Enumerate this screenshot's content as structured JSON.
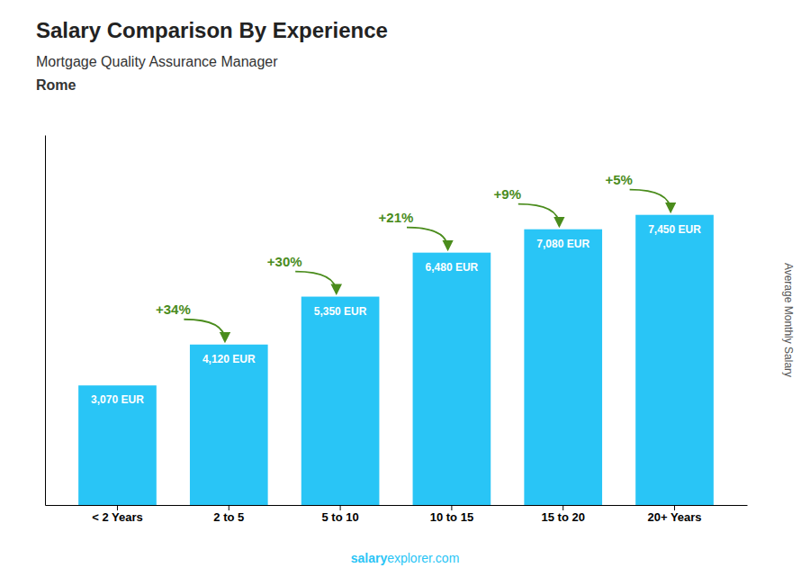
{
  "chart_data": {
    "type": "bar",
    "title": "Salary Comparison By Experience",
    "subtitle": "Mortgage Quality Assurance Manager",
    "city": "Rome",
    "ylabel": "Average Monthly Salary",
    "categories": [
      "< 2 Years",
      "2 to 5",
      "5 to 10",
      "10 to 15",
      "15 to 20",
      "20+ Years"
    ],
    "values": [
      3070,
      4120,
      5350,
      6480,
      7080,
      7450
    ],
    "value_labels": [
      "3,070 EUR",
      "4,120 EUR",
      "5,350 EUR",
      "6,480 EUR",
      "7,080 EUR",
      "7,450 EUR"
    ],
    "data_labels": true,
    "annotations": [
      "+34%",
      "+30%",
      "+21%",
      "+9%",
      "+5%"
    ],
    "footer": [
      "salary",
      "explorer.com"
    ],
    "color": "#29c5f6",
    "ylim": [
      0,
      9500
    ],
    "yticks": [],
    "tick_labels": "x",
    "grid": false
  }
}
